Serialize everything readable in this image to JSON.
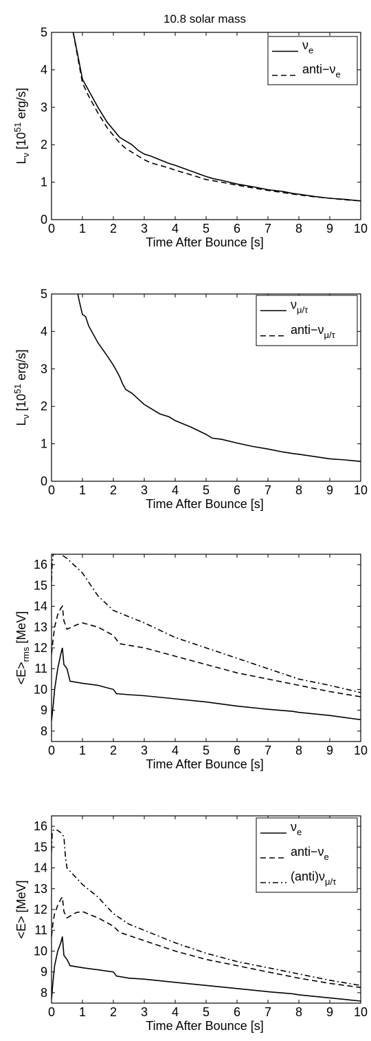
{
  "figure_title": "10.8 solar mass",
  "chart_data": [
    {
      "type": "line",
      "xlabel": "Time After Bounce [s]",
      "ylabel": "L_ν [10^51 erg/s]",
      "ylabel_parts": {
        "base": "L",
        "sub": "ν",
        "mid": " [10",
        "sup": "51",
        "end": " erg/s]"
      },
      "xlim": [
        0,
        10
      ],
      "ylim": [
        0,
        5
      ],
      "xticks": [
        0,
        1,
        2,
        3,
        4,
        5,
        6,
        7,
        8,
        9,
        10
      ],
      "yticks": [
        0,
        1,
        2,
        3,
        4,
        5
      ],
      "grid": false,
      "legend_position": "top-right",
      "series": [
        {
          "name": "ν_e",
          "label": {
            "base": "ν",
            "sub": "e"
          },
          "style": "solid",
          "x": [
            0.7,
            0.8,
            1.0,
            1.2,
            1.5,
            1.8,
            2.0,
            2.2,
            2.4,
            2.6,
            2.8,
            3.0,
            3.2,
            3.5,
            3.8,
            4.0,
            4.5,
            5.0,
            5.2,
            5.5,
            6.0,
            6.5,
            7.0,
            7.5,
            7.8,
            8.0,
            8.5,
            9.0,
            9.5,
            10.0
          ],
          "y": [
            5.0,
            4.6,
            3.75,
            3.45,
            3.0,
            2.6,
            2.4,
            2.2,
            2.1,
            2.0,
            1.85,
            1.75,
            1.7,
            1.6,
            1.5,
            1.45,
            1.3,
            1.15,
            1.1,
            1.05,
            0.95,
            0.88,
            0.8,
            0.75,
            0.7,
            0.68,
            0.62,
            0.57,
            0.54,
            0.5
          ]
        },
        {
          "name": "anti-ν_e",
          "label": {
            "base": "anti−ν",
            "sub": "e"
          },
          "style": "dashed",
          "x": [
            0.7,
            0.8,
            1.0,
            1.2,
            1.5,
            1.8,
            2.0,
            2.2,
            2.4,
            2.6,
            2.8,
            3.0,
            3.2,
            3.5,
            3.8,
            4.0,
            4.5,
            5.0,
            5.5,
            6.0,
            6.5,
            7.0,
            7.5,
            8.0,
            8.5,
            9.0,
            9.5,
            10.0
          ],
          "y": [
            5.0,
            4.55,
            3.65,
            3.3,
            2.85,
            2.45,
            2.25,
            2.05,
            1.9,
            1.8,
            1.7,
            1.6,
            1.52,
            1.45,
            1.38,
            1.32,
            1.2,
            1.07,
            1.0,
            0.92,
            0.85,
            0.78,
            0.72,
            0.66,
            0.61,
            0.57,
            0.53,
            0.5
          ]
        }
      ]
    },
    {
      "type": "line",
      "xlabel": "Time After Bounce [s]",
      "ylabel": "L_ν [10^51 erg/s]",
      "ylabel_parts": {
        "base": "L",
        "sub": "ν",
        "mid": " [10",
        "sup": "51",
        "end": " erg/s]"
      },
      "xlim": [
        0,
        10
      ],
      "ylim": [
        0,
        5
      ],
      "xticks": [
        0,
        1,
        2,
        3,
        4,
        5,
        6,
        7,
        8,
        9,
        10
      ],
      "yticks": [
        0,
        1,
        2,
        3,
        4,
        5
      ],
      "grid": false,
      "legend_position": "top-right",
      "series": [
        {
          "name": "ν_μ/τ",
          "label": {
            "base": "ν",
            "sub": "μ/τ"
          },
          "style": "solid",
          "x": [
            0.85,
            0.9,
            1.0,
            1.1,
            1.2,
            1.5,
            1.8,
            2.0,
            2.2,
            2.3,
            2.4,
            2.6,
            2.8,
            3.0,
            3.2,
            3.5,
            3.8,
            4.0,
            4.5,
            5.0,
            5.2,
            5.5,
            6.0,
            6.5,
            7.0,
            7.5,
            7.8,
            8.0,
            8.5,
            9.0,
            9.5,
            10.0
          ],
          "y": [
            5.0,
            4.8,
            4.45,
            4.4,
            4.15,
            3.7,
            3.35,
            3.1,
            2.8,
            2.6,
            2.45,
            2.35,
            2.2,
            2.05,
            1.95,
            1.8,
            1.72,
            1.62,
            1.45,
            1.25,
            1.15,
            1.12,
            1.02,
            0.93,
            0.86,
            0.78,
            0.74,
            0.72,
            0.66,
            0.6,
            0.57,
            0.53
          ]
        },
        {
          "name": "anti-ν_μ/τ",
          "label": {
            "base": "anti−ν",
            "sub": "μ/τ"
          },
          "style": "dashed",
          "x": [],
          "y": []
        }
      ]
    },
    {
      "type": "line",
      "xlabel": "Time After Bounce [s]",
      "ylabel": "<E>_rms [MeV]",
      "ylabel_parts": {
        "base": "<E>",
        "sub": "rms",
        "mid": " [MeV]",
        "sup": "",
        "end": ""
      },
      "xlim": [
        0,
        10
      ],
      "ylim": [
        7.5,
        16.5
      ],
      "xticks": [
        0,
        1,
        2,
        3,
        4,
        5,
        6,
        7,
        8,
        9,
        10
      ],
      "yticks": [
        8,
        9,
        10,
        11,
        12,
        13,
        14,
        15,
        16
      ],
      "grid": false,
      "legend_position": "none",
      "series": [
        {
          "name": "ν_e",
          "style": "solid",
          "x": [
            0.0,
            0.05,
            0.1,
            0.2,
            0.3,
            0.35,
            0.4,
            0.5,
            0.6,
            1.0,
            1.5,
            2.0,
            2.1,
            2.5,
            3.0,
            4.0,
            5.0,
            6.0,
            7.0,
            7.8,
            8.0,
            9.0,
            10.0
          ],
          "y": [
            8.5,
            9.2,
            10.0,
            11.0,
            11.7,
            12.0,
            11.2,
            11.0,
            10.4,
            10.3,
            10.2,
            10.0,
            9.8,
            9.75,
            9.7,
            9.55,
            9.4,
            9.2,
            9.05,
            8.95,
            8.9,
            8.75,
            8.55
          ]
        },
        {
          "name": "anti-ν_e",
          "style": "dashed",
          "x": [
            0.0,
            0.05,
            0.1,
            0.2,
            0.3,
            0.35,
            0.4,
            0.5,
            0.8,
            1.0,
            1.5,
            2.0,
            2.2,
            3.0,
            4.0,
            5.0,
            6.0,
            7.0,
            8.0,
            9.0,
            10.0
          ],
          "y": [
            11.7,
            12.4,
            13.0,
            13.6,
            13.9,
            14.0,
            13.3,
            12.9,
            13.1,
            13.2,
            13.0,
            12.6,
            12.2,
            12.0,
            11.6,
            11.2,
            10.8,
            10.5,
            10.2,
            9.9,
            9.65
          ]
        },
        {
          "name": "(anti)ν_μ/τ",
          "style": "dashdot",
          "x": [
            0.0,
            0.02,
            0.05,
            0.1,
            0.15,
            0.2,
            0.3,
            0.5,
            1.0,
            1.5,
            2.0,
            2.5,
            3.0,
            4.0,
            5.0,
            6.0,
            7.0,
            8.0,
            9.0,
            10.0
          ],
          "y": [
            15.2,
            16.0,
            16.5,
            16.5,
            16.5,
            16.5,
            16.5,
            16.3,
            15.6,
            14.5,
            13.8,
            13.5,
            13.2,
            12.5,
            12.0,
            11.5,
            11.0,
            10.5,
            10.2,
            9.85
          ]
        }
      ]
    },
    {
      "type": "line",
      "xlabel": "Time After Bounce [s]",
      "ylabel": "<E> [MeV]",
      "ylabel_parts": {
        "base": "<E> [MeV]",
        "sub": "",
        "mid": "",
        "sup": "",
        "end": ""
      },
      "xlim": [
        0,
        10
      ],
      "ylim": [
        7.5,
        16.5
      ],
      "xticks": [
        0,
        1,
        2,
        3,
        4,
        5,
        6,
        7,
        8,
        9,
        10
      ],
      "yticks": [
        8,
        9,
        10,
        11,
        12,
        13,
        14,
        15,
        16
      ],
      "grid": false,
      "legend_position": "top-right",
      "series": [
        {
          "name": "ν_e",
          "label": {
            "base": "ν",
            "sub": "e"
          },
          "style": "solid",
          "x": [
            0.0,
            0.05,
            0.1,
            0.2,
            0.3,
            0.35,
            0.4,
            0.5,
            0.6,
            1.0,
            1.5,
            2.0,
            2.1,
            2.5,
            3.0,
            4.0,
            5.0,
            6.0,
            7.0,
            7.8,
            8.0,
            9.0,
            10.0
          ],
          "y": [
            7.7,
            8.6,
            9.3,
            10.0,
            10.4,
            10.7,
            9.8,
            9.6,
            9.3,
            9.2,
            9.1,
            9.0,
            8.8,
            8.7,
            8.65,
            8.5,
            8.35,
            8.2,
            8.05,
            7.95,
            7.9,
            7.75,
            7.6
          ]
        },
        {
          "name": "anti-ν_e",
          "label": {
            "base": "anti−ν",
            "sub": "e"
          },
          "style": "dashed",
          "x": [
            0.0,
            0.05,
            0.1,
            0.2,
            0.3,
            0.35,
            0.4,
            0.5,
            0.8,
            1.0,
            1.5,
            2.0,
            2.2,
            3.0,
            4.0,
            5.0,
            6.0,
            7.0,
            8.0,
            9.0,
            10.0
          ],
          "y": [
            10.7,
            11.4,
            11.8,
            12.2,
            12.5,
            12.6,
            11.9,
            11.6,
            11.85,
            11.9,
            11.6,
            11.2,
            10.9,
            10.5,
            10.0,
            9.6,
            9.3,
            9.0,
            8.7,
            8.45,
            8.25
          ]
        },
        {
          "name": "(anti)ν_μ/τ",
          "label": {
            "base": "(anti)ν",
            "sub": "μ/τ"
          },
          "style": "dashdot",
          "x": [
            0.0,
            0.02,
            0.05,
            0.1,
            0.2,
            0.3,
            0.4,
            0.45,
            0.5,
            1.0,
            1.5,
            2.0,
            2.5,
            3.0,
            4.0,
            5.0,
            6.0,
            7.0,
            8.0,
            9.0,
            10.0
          ],
          "y": [
            14.8,
            15.6,
            15.8,
            15.85,
            15.8,
            15.7,
            15.5,
            14.5,
            14.0,
            13.2,
            12.6,
            11.8,
            11.3,
            11.0,
            10.4,
            9.9,
            9.5,
            9.2,
            8.9,
            8.6,
            8.35
          ]
        }
      ]
    }
  ]
}
